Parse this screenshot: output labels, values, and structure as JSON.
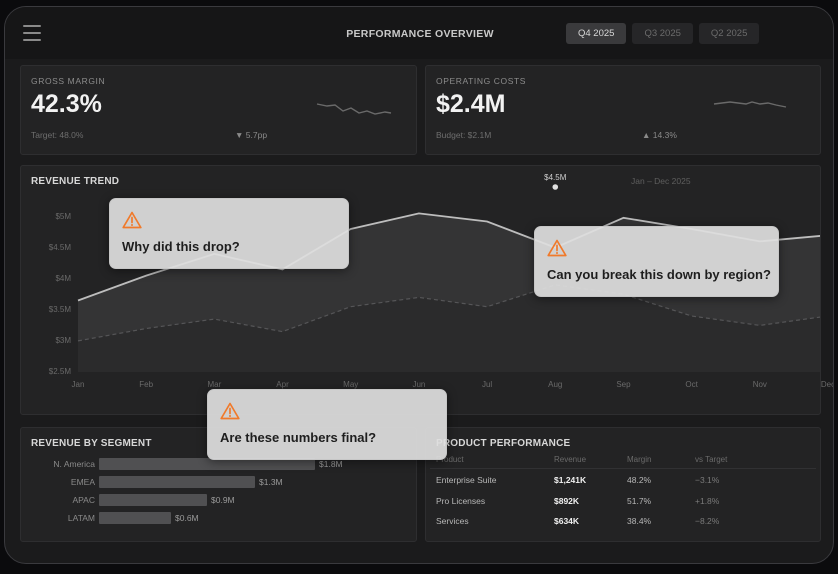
{
  "header": {
    "title": "PERFORMANCE OVERVIEW",
    "tabs": [
      {
        "label": "Q4 2025",
        "active": true
      },
      {
        "label": "Q3 2025",
        "active": false
      },
      {
        "label": "Q2 2025",
        "active": false
      }
    ]
  },
  "kpis": [
    {
      "label": "GROSS MARGIN",
      "value": "42.3%",
      "sub": "Target: 48.0%",
      "delta": "▼ 5.7pp"
    },
    {
      "label": "OPERATING COSTS",
      "value": "$2.4M",
      "sub": "Budget: $2.1M",
      "delta": "▲ 14.3%"
    }
  ],
  "revenue_trend": {
    "title": "REVENUE TREND",
    "subtitle": "Jan – Dec 2025",
    "peak_label": "$4.5M",
    "colors": {
      "line": "#bdbdbd",
      "area": "#343435",
      "secondary": "#555557"
    }
  },
  "chart_data": [
    {
      "type": "area",
      "title": "REVENUE TREND",
      "subtitle": "Jan – Dec 2025",
      "x": [
        "Jan",
        "Feb",
        "Mar",
        "Apr",
        "May",
        "Jun",
        "Jul",
        "Aug",
        "Sep",
        "Oct",
        "Nov",
        "Dec"
      ],
      "yticks": [
        "$5M",
        "$4.5M",
        "$4M",
        "$3.5M",
        "$3M",
        "$2.5M"
      ],
      "ylim": [
        2.5,
        5.25
      ],
      "series": [
        {
          "values": [
            3.65,
            4.05,
            4.4,
            4.15,
            4.8,
            5.05,
            4.92,
            4.5,
            4.98,
            4.8,
            4.6,
            4.7
          ]
        },
        {
          "values": [
            3.0,
            3.2,
            3.35,
            3.15,
            3.55,
            3.7,
            3.55,
            3.9,
            3.75,
            3.4,
            3.25,
            3.4
          ]
        }
      ],
      "annotations": [
        {
          "x": "Aug",
          "label": "$4.5M"
        }
      ]
    },
    {
      "type": "bar",
      "title": "REVENUE BY SEGMENT",
      "categories": [
        "N. America",
        "EMEA",
        "APAC",
        "LATAM"
      ],
      "values": [
        1.8,
        1.3,
        0.9,
        0.6
      ],
      "value_labels": [
        "$1.8M",
        "$1.3M",
        "$0.9M",
        "$0.6M"
      ],
      "xlim": [
        0,
        1.8
      ]
    }
  ],
  "product_performance": {
    "title": "PRODUCT PERFORMANCE",
    "columns": [
      "Product",
      "Revenue",
      "Margin",
      "vs Target"
    ],
    "rows": [
      [
        "Enterprise Suite",
        "$1,241K",
        "48.2%",
        "−3.1%"
      ],
      [
        "Pro Licenses",
        "$892K",
        "51.7%",
        "+1.8%"
      ],
      [
        "Services",
        "$634K",
        "38.4%",
        "−8.2%"
      ]
    ]
  },
  "callouts": [
    {
      "text": "Why did this drop?"
    },
    {
      "text": "Can you break this down by region?"
    },
    {
      "text": "Are these numbers final?"
    }
  ],
  "icons": {
    "menu": "hamburger-menu-icon",
    "callout": "warning-triangle-icon"
  },
  "colors": {
    "warning": "#f07a2b",
    "background": "#1b1b1c"
  }
}
